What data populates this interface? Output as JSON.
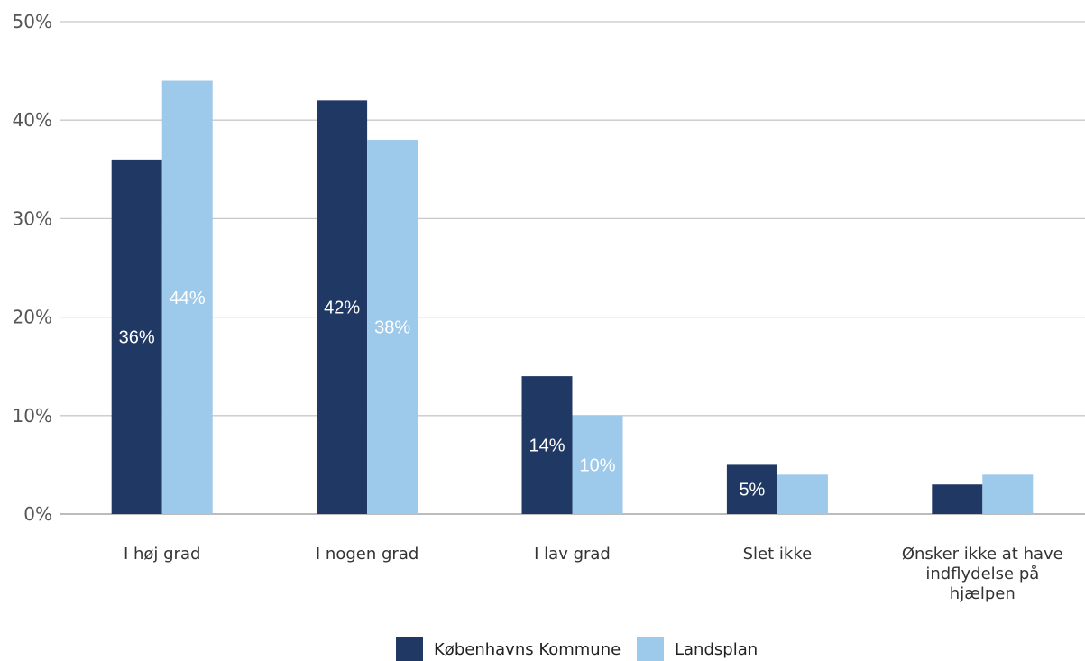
{
  "chart_data": {
    "type": "bar",
    "title": "",
    "xlabel": "",
    "ylabel": "",
    "ylim": [
      0,
      50
    ],
    "y_ticks": [
      "0%",
      "10%",
      "20%",
      "30%",
      "40%",
      "50%"
    ],
    "y_tick_values": [
      0,
      10,
      20,
      30,
      40,
      50
    ],
    "grid": true,
    "legend_position": "bottom-center",
    "categories": [
      [
        "I høj grad"
      ],
      [
        "I nogen grad"
      ],
      [
        "I lav grad"
      ],
      [
        "Slet ikke"
      ],
      [
        "Ønsker ikke at have",
        "indflydelse på",
        "hjælpen"
      ]
    ],
    "series": [
      {
        "name": "Københavns Kommune",
        "color": "#203864",
        "label_color": "#ffffff",
        "values": [
          36,
          42,
          14,
          5,
          3
        ],
        "data_labels": [
          "36%",
          "42%",
          "14%",
          "5%",
          ""
        ]
      },
      {
        "name": "Landsplan",
        "color": "#9dc9ea",
        "label_color": "#ffffff",
        "values": [
          44,
          38,
          10,
          4,
          4
        ],
        "data_labels": [
          "44%",
          "38%",
          "10%",
          "",
          ""
        ]
      }
    ]
  }
}
